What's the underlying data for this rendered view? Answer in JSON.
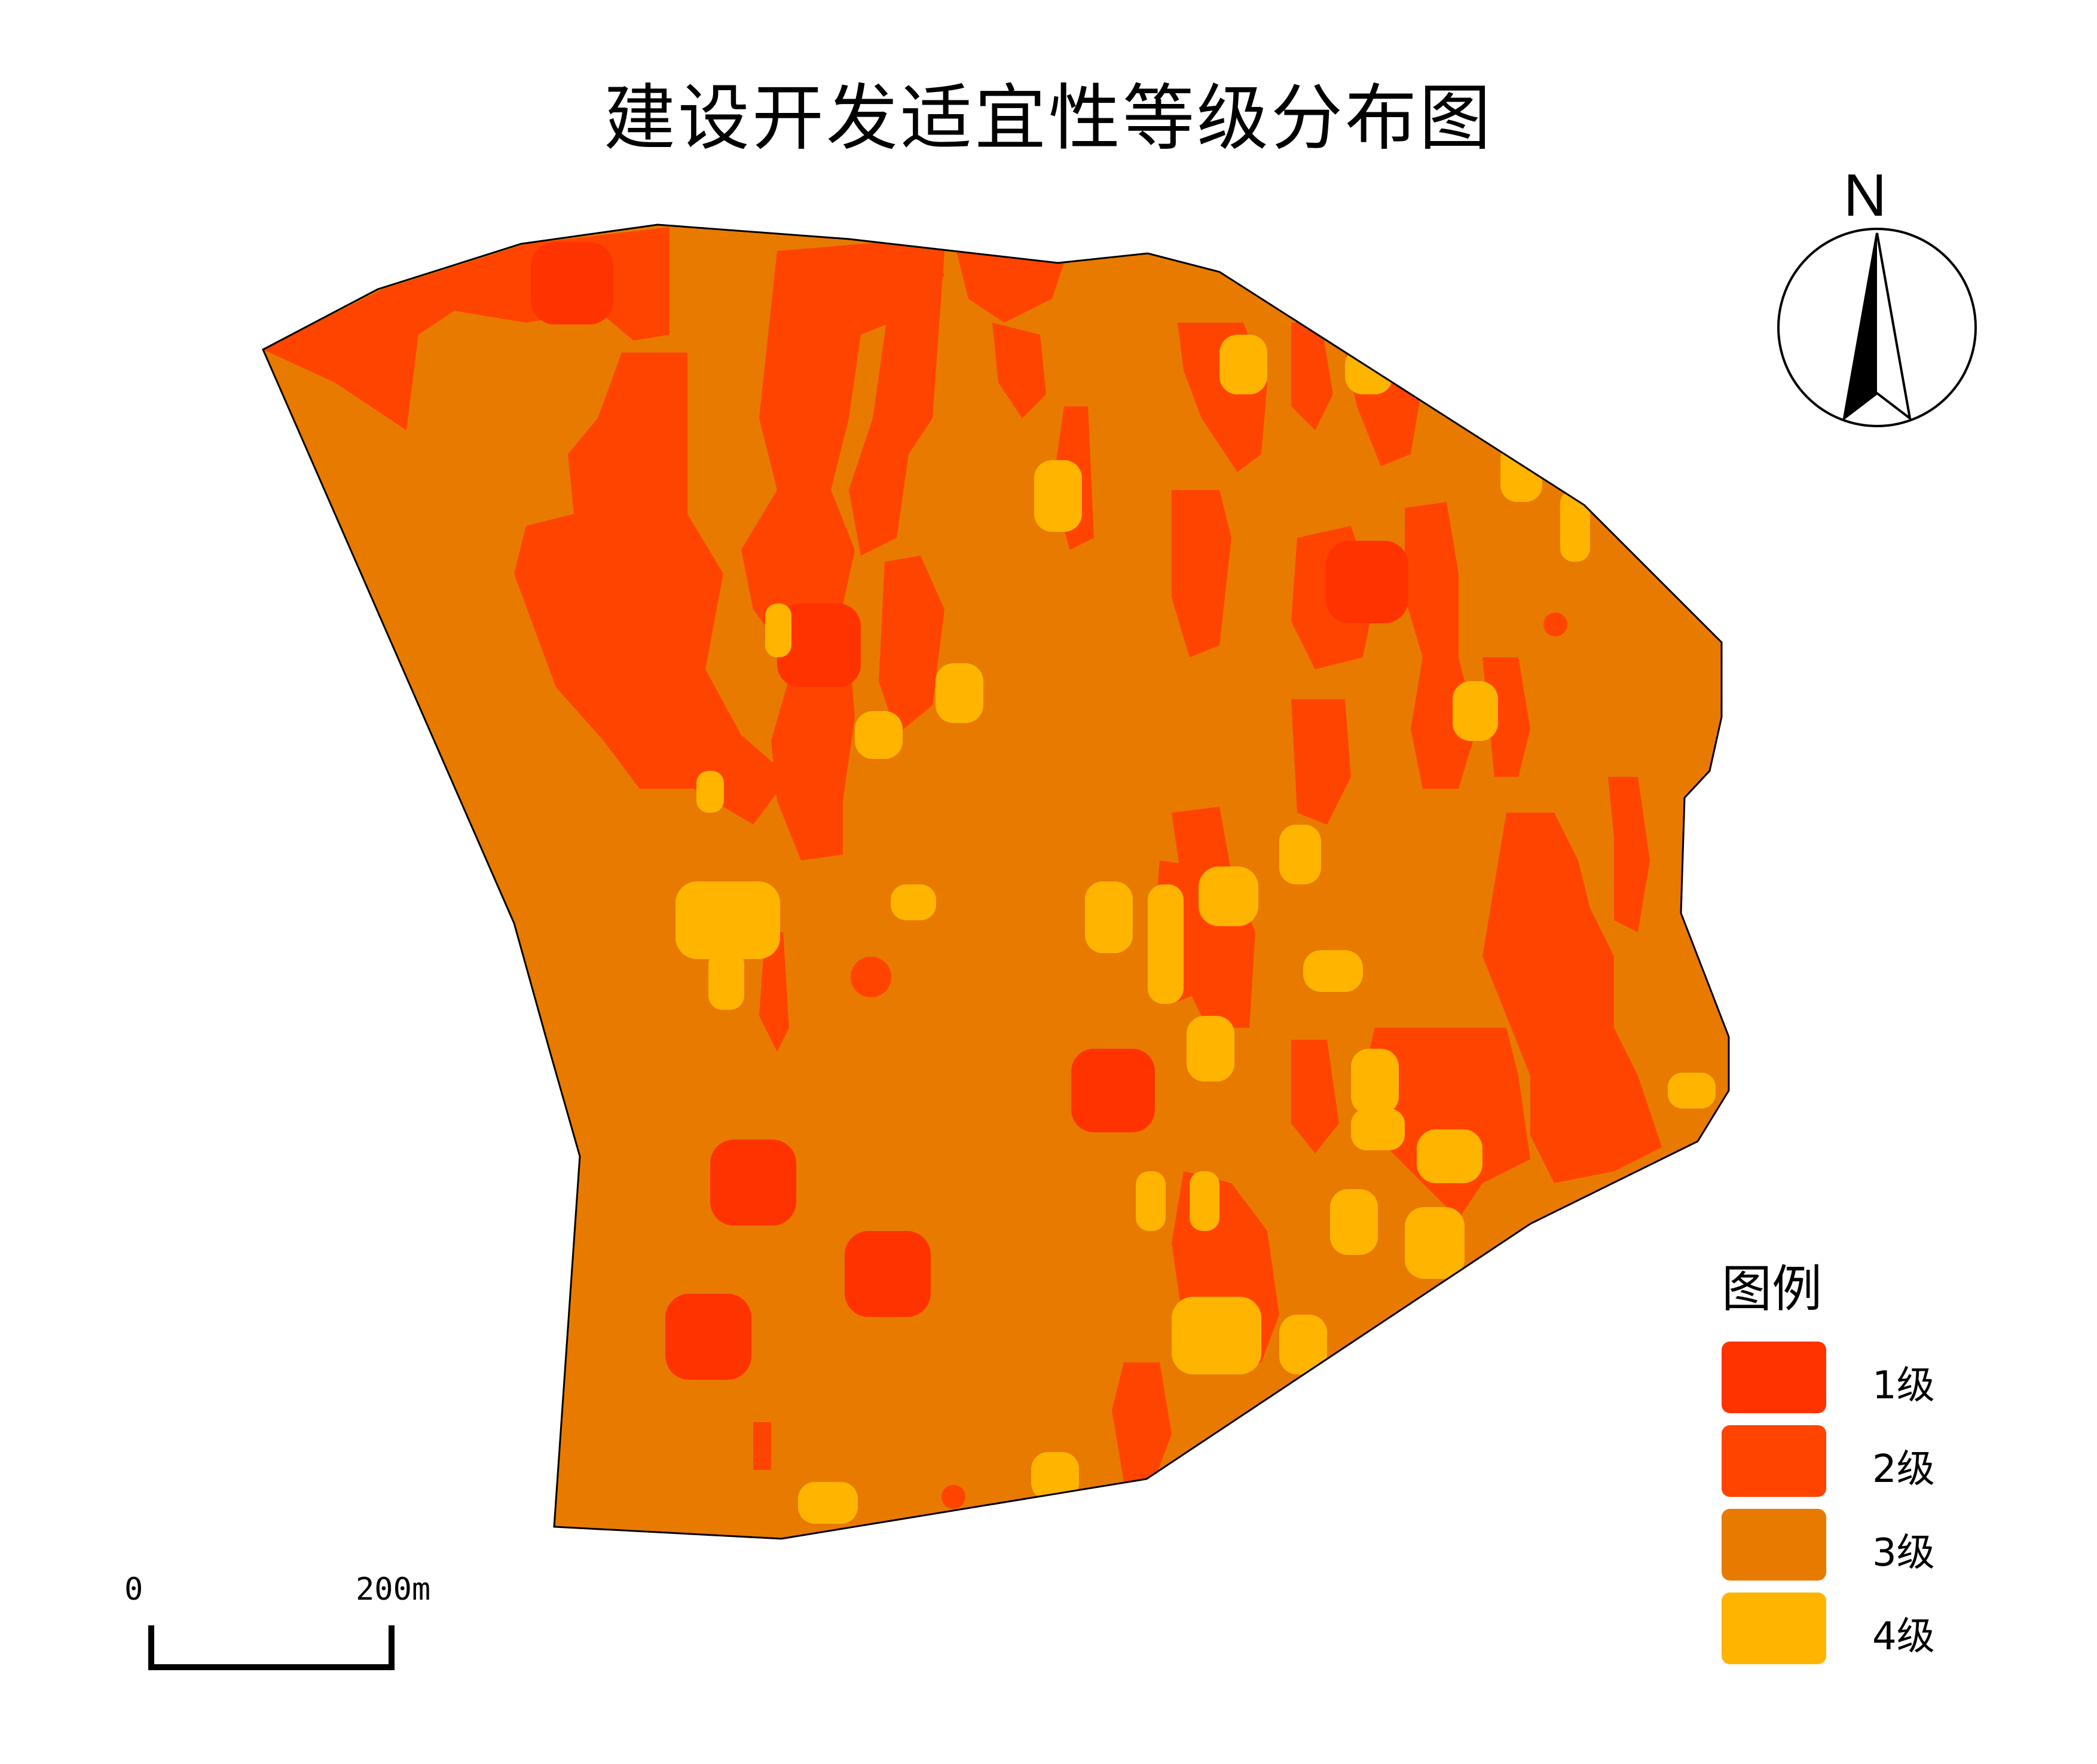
{
  "title": "建设开发适宜性等级分布图",
  "north_arrow": {
    "label": "N",
    "icon": "north-arrow-icon"
  },
  "legend": {
    "title": "图例",
    "items": [
      {
        "label": "1级",
        "color": "#FF3300"
      },
      {
        "label": "2级",
        "color": "#FF4400"
      },
      {
        "label": "3级",
        "color": "#E87A00"
      },
      {
        "label": "4级",
        "color": "#FFB400"
      }
    ]
  },
  "scale_bar": {
    "start_label": "0",
    "end_label": "200m"
  },
  "colors": {
    "level1": "#FF3300",
    "level2": "#FF4400",
    "level3": "#E87A00",
    "level4": "#FFB400",
    "outline": "#000000"
  }
}
